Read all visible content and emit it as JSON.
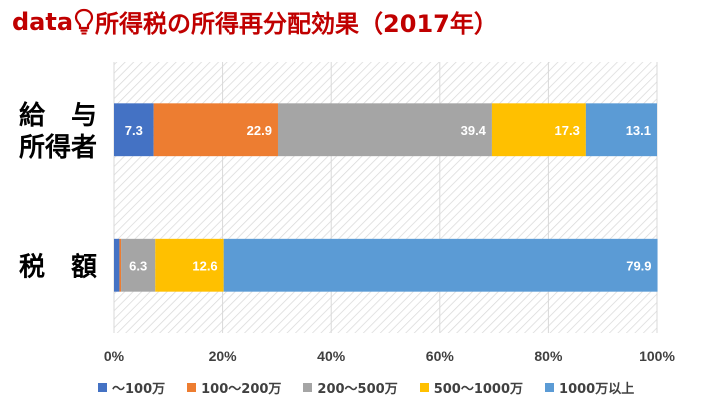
{
  "title": {
    "prefix": "data",
    "icon": "lightbulb-icon",
    "text": "所得税の所得再分配効果（2017年）"
  },
  "chart_data": {
    "type": "bar",
    "orientation": "horizontal",
    "stacked": true,
    "percent": true,
    "categories": [
      "給 与\n所得者",
      "税 額"
    ],
    "category_lines": [
      [
        "給　与",
        "所得者"
      ],
      [
        "税　額"
      ]
    ],
    "series": [
      {
        "name": "～100万",
        "color": "#4472c4",
        "values": [
          7.3,
          1.0
        ],
        "labels": [
          "7.3",
          ""
        ]
      },
      {
        "name": "100～200万",
        "color": "#ed7d31",
        "values": [
          22.9,
          0.3
        ],
        "labels": [
          "22.9",
          ""
        ]
      },
      {
        "name": "200～500万",
        "color": "#a5a5a5",
        "values": [
          39.4,
          6.3
        ],
        "labels": [
          "39.4",
          "6.3"
        ]
      },
      {
        "name": "500～1000万",
        "color": "#ffc000",
        "values": [
          17.3,
          12.6
        ],
        "labels": [
          "17.3",
          "12.6"
        ]
      },
      {
        "name": "1000万以上",
        "color": "#5b9bd5",
        "values": [
          13.1,
          79.9
        ],
        "labels": [
          "13.1",
          "79.9"
        ]
      }
    ],
    "xlim": [
      0,
      100
    ],
    "xticks": [
      "0%",
      "20%",
      "40%",
      "60%",
      "80%",
      "100%"
    ],
    "grid": true,
    "legend_position": "bottom"
  }
}
